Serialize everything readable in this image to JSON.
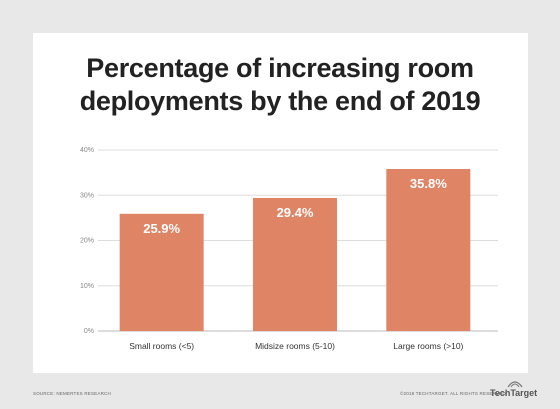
{
  "chart_data": {
    "type": "bar",
    "title_lines": [
      "Percentage of increasing room",
      "deployments by the end of 2019"
    ],
    "categories": [
      "Small rooms (<5)",
      "Midsize rooms (5-10)",
      "Large rooms (>10)"
    ],
    "values": [
      25.9,
      29.4,
      35.8
    ],
    "value_labels": [
      "25.9%",
      "29.4%",
      "35.8%"
    ],
    "ylim": [
      0,
      40
    ],
    "yticks": [
      0,
      10,
      20,
      30,
      40
    ],
    "ytick_labels": [
      "0%",
      "10%",
      "20%",
      "30%",
      "40%"
    ],
    "grid": true,
    "bar_color": "#e08466",
    "label_color": "#ffffff"
  },
  "footer": {
    "source": "SOURCE: NEMERTES RESEARCH",
    "copyright": "©2018 TECHTARGET. ALL RIGHTS RESERVED",
    "brand": "TechTarget"
  }
}
